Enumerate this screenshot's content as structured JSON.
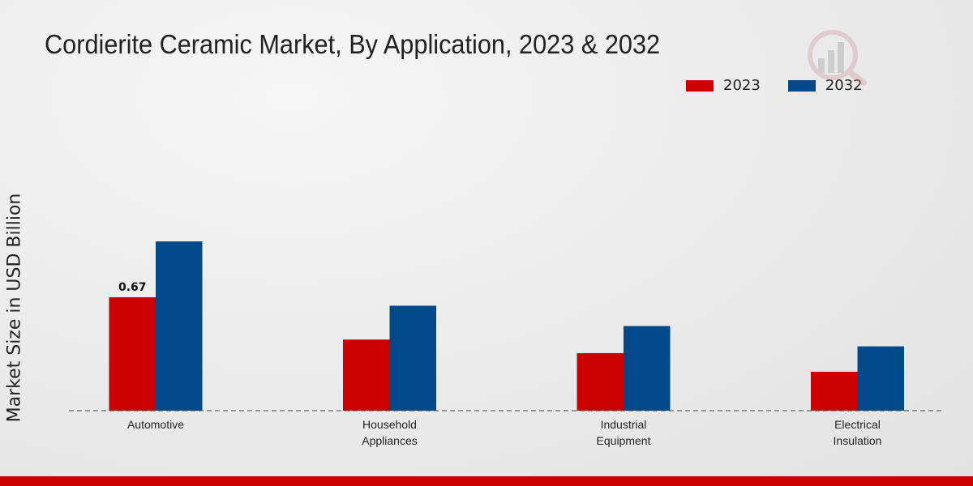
{
  "chart_data": {
    "type": "bar",
    "title": "Cordierite Ceramic Market, By Application, 2023 & 2032",
    "xlabel": "",
    "ylabel": "Market Size in USD Billion",
    "categories": [
      [
        "Automotive"
      ],
      [
        "Household",
        "Appliances"
      ],
      [
        "Industrial",
        "Equipment"
      ],
      [
        "Electrical",
        "Insulation"
      ]
    ],
    "series": [
      {
        "name": "2023",
        "color": "#cc0000",
        "values": [
          0.67,
          0.42,
          0.34,
          0.23
        ]
      },
      {
        "name": "2032",
        "color": "#004a8c",
        "values": [
          1.0,
          0.62,
          0.5,
          0.38
        ]
      }
    ],
    "data_labels": [
      {
        "series": 0,
        "index": 0,
        "text": "0.67"
      }
    ],
    "ylim": [
      0,
      1.4
    ],
    "grid": false,
    "legend": "top-right"
  },
  "footer_color": "#cc0000"
}
